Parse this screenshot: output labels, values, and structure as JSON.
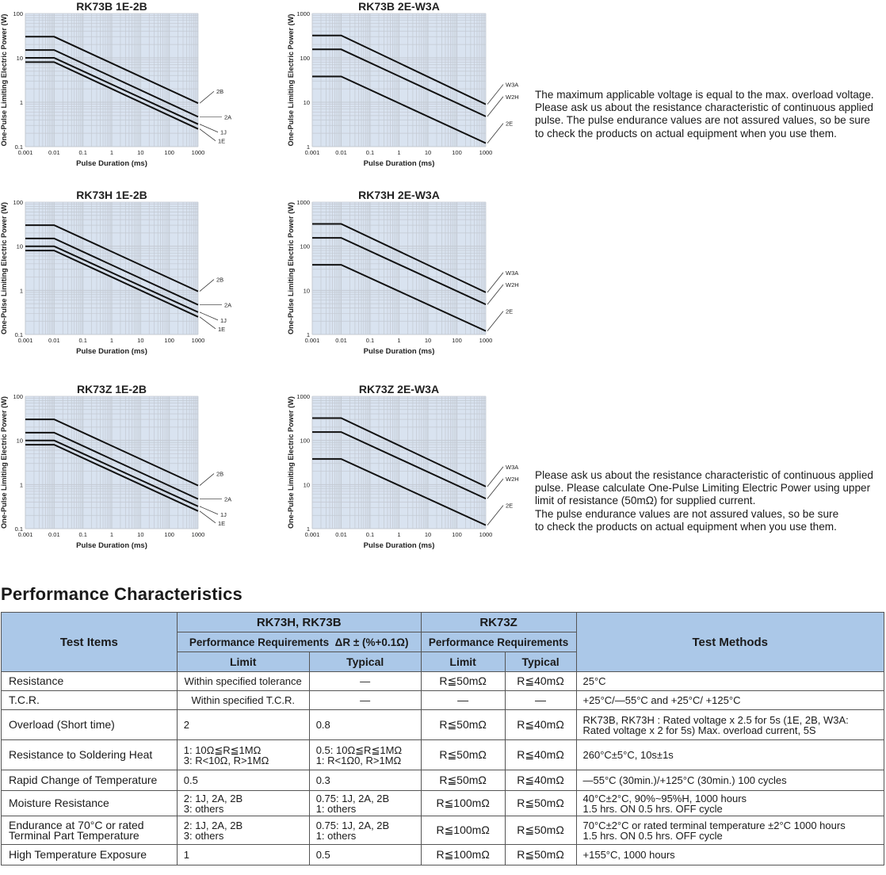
{
  "charts_common": {
    "ylabel": "One-Pulse Limiting Electric Power (W)",
    "xlabel": "Pulse Duration (ms)",
    "x_ticks": [
      "0.001",
      "0.01",
      "0.1",
      "1",
      "10",
      "100",
      "1000"
    ]
  },
  "notes": {
    "top": "The maximum applicable voltage is equal to the max. overload voltage.\nPlease ask us about the resistance characteristic of continuous applied\npulse. The pulse endurance values are not assured values, so be sure\nto check the products on actual equipment when you use them.",
    "bottom": "Please ask us about the resistance characteristic of continuous applied\npulse. Please calculate One-Pulse Limiting Electric Power using upper\nlimit of resistance (50mΩ) for supplied current.\nThe pulse endurance values are not assured values, so be sure\nto check the products on actual equipment when you use them."
  },
  "section_title": "Performance Characteristics",
  "table": {
    "headers": {
      "test_items": "Test Items",
      "group1": "RK73H, RK73B",
      "group1_sub": "Performance Requirements  ΔR ± (%+0.1Ω)",
      "group2": "RK73Z",
      "group2_sub": "Performance Requirements",
      "limit": "Limit",
      "typical": "Typical",
      "limit2": "Limit",
      "typical2": "Typical",
      "test_methods": "Test Methods"
    },
    "rows": [
      {
        "item": "Resistance",
        "limit": "Within specified tolerance",
        "typical": "—",
        "z_limit": "R≦50mΩ",
        "z_typical": "R≦40mΩ",
        "method": "25°C"
      },
      {
        "item": "T.C.R.",
        "limit": "Within specified T.C.R.",
        "typical": "—",
        "z_limit": "—",
        "z_typical": "—",
        "method": "+25°C/—55°C and +25°C/ +125°C"
      },
      {
        "item": "Overload (Short time)",
        "limit": "2",
        "typical": "0.8",
        "z_limit": "R≦50mΩ",
        "z_typical": "R≦40mΩ",
        "method": "RK73B, RK73H : Rated voltage x 2.5 for 5s (1E, 2B, W3A:\nRated voltage x 2 for 5s) Max. overload current, 5S"
      },
      {
        "item": "Resistance to Soldering Heat",
        "limit": "1: 10Ω≦R≦1MΩ\n3: R<10Ω, R>1MΩ",
        "typical": "0.5: 10Ω≦R≦1MΩ\n1: R<1Ω0, R>1MΩ",
        "z_limit": "R≦50mΩ",
        "z_typical": "R≦40mΩ",
        "method": "260°C±5°C, 10s±1s"
      },
      {
        "item": "Rapid Change of Temperature",
        "limit": "0.5",
        "typical": "0.3",
        "z_limit": "R≦50mΩ",
        "z_typical": "R≦40mΩ",
        "method": "—55°C (30min.)/+125°C (30min.) 100 cycles"
      },
      {
        "item": "Moisture Resistance",
        "limit": "2: 1J, 2A, 2B\n3: others",
        "typical": "0.75: 1J, 2A, 2B\n1: others",
        "z_limit": "R≦100mΩ",
        "z_typical": "R≦50mΩ",
        "method": "40°C±2°C, 90%~95%H, 1000 hours\n1.5 hrs. ON   0.5 hrs. OFF cycle"
      },
      {
        "item": "Endurance at 70°C or rated\nTerminal Part Temperature",
        "limit": "2: 1J, 2A, 2B\n3: others",
        "typical": "0.75: 1J, 2A, 2B\n1: others",
        "z_limit": "R≦100mΩ",
        "z_typical": "R≦50mΩ",
        "method": "70°C±2°C or rated terminal temperature ±2°C  1000 hours\n1.5 hrs. ON   0.5 hrs. OFF cycle"
      },
      {
        "item": "High Temperature Exposure",
        "limit": "1",
        "typical": "0.5",
        "z_limit": "R≦100mΩ",
        "z_typical": "R≦50mΩ",
        "method": "+155°C, 1000 hours"
      }
    ]
  },
  "colors": {
    "plot_bg": "#d9e3f0",
    "grid": "#c3c9d2",
    "header_bg": "#abc8e8",
    "line": "#111111"
  },
  "chart_data": [
    {
      "type": "line",
      "title": "RK73B 1E-2B",
      "xlabel": "Pulse Duration (ms)",
      "ylabel": "One-Pulse Limiting Electric Power (W)",
      "xscale": "log",
      "yscale": "log",
      "xlim": [
        0.001,
        1000
      ],
      "ylim": [
        0.1,
        100
      ],
      "y_ticks": [
        "0.1",
        "1",
        "10",
        "100"
      ],
      "grid": true,
      "x": [
        0.001,
        0.01,
        1000
      ],
      "series": [
        {
          "name": "2B",
          "values": [
            30,
            30,
            0.95
          ]
        },
        {
          "name": "2A",
          "values": [
            15,
            15,
            0.47
          ]
        },
        {
          "name": "1J",
          "values": [
            10,
            10,
            0.32
          ]
        },
        {
          "name": "1E",
          "values": [
            8,
            8,
            0.25
          ]
        }
      ]
    },
    {
      "type": "line",
      "title": "RK73B 2E-W3A",
      "xlabel": "Pulse Duration (ms)",
      "ylabel": "One-Pulse Limiting Electric Power (W)",
      "xscale": "log",
      "yscale": "log",
      "xlim": [
        0.001,
        1000
      ],
      "ylim": [
        1,
        1000
      ],
      "y_ticks": [
        "1",
        "10",
        "100",
        "1000"
      ],
      "grid": true,
      "x": [
        0.001,
        0.01,
        1000
      ],
      "series": [
        {
          "name": "W3A",
          "values": [
            320,
            320,
            9
          ]
        },
        {
          "name": "W2H",
          "values": [
            155,
            155,
            4.8
          ]
        },
        {
          "name": "2E",
          "values": [
            38,
            38,
            1.2
          ]
        }
      ]
    },
    {
      "type": "line",
      "title": "RK73H 1E-2B",
      "xlabel": "Pulse Duration (ms)",
      "ylabel": "One-Pulse Limiting Electric Power (W)",
      "xscale": "log",
      "yscale": "log",
      "xlim": [
        0.001,
        1000
      ],
      "ylim": [
        0.1,
        100
      ],
      "y_ticks": [
        "0.1",
        "1",
        "10",
        "100"
      ],
      "grid": true,
      "x": [
        0.001,
        0.01,
        1000
      ],
      "series": [
        {
          "name": "2B",
          "values": [
            30,
            30,
            0.95
          ]
        },
        {
          "name": "2A",
          "values": [
            15,
            15,
            0.47
          ]
        },
        {
          "name": "1J",
          "values": [
            10,
            10,
            0.32
          ]
        },
        {
          "name": "1E",
          "values": [
            8,
            8,
            0.25
          ]
        }
      ]
    },
    {
      "type": "line",
      "title": "RK73H 2E-W3A",
      "xlabel": "Pulse Duration (ms)",
      "ylabel": "One-Pulse Limiting Electric Power (W)",
      "xscale": "log",
      "yscale": "log",
      "xlim": [
        0.001,
        1000
      ],
      "ylim": [
        1,
        1000
      ],
      "y_ticks": [
        "1",
        "10",
        "100",
        "1000"
      ],
      "grid": true,
      "x": [
        0.001,
        0.01,
        1000
      ],
      "series": [
        {
          "name": "W3A",
          "values": [
            320,
            320,
            9
          ]
        },
        {
          "name": "W2H",
          "values": [
            155,
            155,
            4.8
          ]
        },
        {
          "name": "2E",
          "values": [
            38,
            38,
            1.2
          ]
        }
      ]
    },
    {
      "type": "line",
      "title": "RK73Z 1E-2B",
      "xlabel": "Pulse Duration (ms)",
      "ylabel": "One-Pulse Limiting Electric Power (W)",
      "xscale": "log",
      "yscale": "log",
      "xlim": [
        0.001,
        1000
      ],
      "ylim": [
        0.1,
        100
      ],
      "y_ticks": [
        "0.1",
        "1",
        "10",
        "100"
      ],
      "grid": true,
      "x": [
        0.001,
        0.01,
        1000
      ],
      "series": [
        {
          "name": "2B",
          "values": [
            30,
            30,
            0.95
          ]
        },
        {
          "name": "2A",
          "values": [
            15,
            15,
            0.47
          ]
        },
        {
          "name": "1J",
          "values": [
            10,
            10,
            0.32
          ]
        },
        {
          "name": "1E",
          "values": [
            8,
            8,
            0.25
          ]
        }
      ]
    },
    {
      "type": "line",
      "title": "RK73Z 2E-W3A",
      "xlabel": "Pulse Duration (ms)",
      "ylabel": "One-Pulse Limiting Electric Power (W)",
      "xscale": "log",
      "yscale": "log",
      "xlim": [
        0.001,
        1000
      ],
      "ylim": [
        1,
        1000
      ],
      "y_ticks": [
        "1",
        "10",
        "100",
        "1000"
      ],
      "grid": true,
      "x": [
        0.001,
        0.01,
        1000
      ],
      "series": [
        {
          "name": "W3A",
          "values": [
            320,
            320,
            9
          ]
        },
        {
          "name": "W2H",
          "values": [
            155,
            155,
            4.8
          ]
        },
        {
          "name": "2E",
          "values": [
            38,
            38,
            1.2
          ]
        }
      ]
    }
  ]
}
